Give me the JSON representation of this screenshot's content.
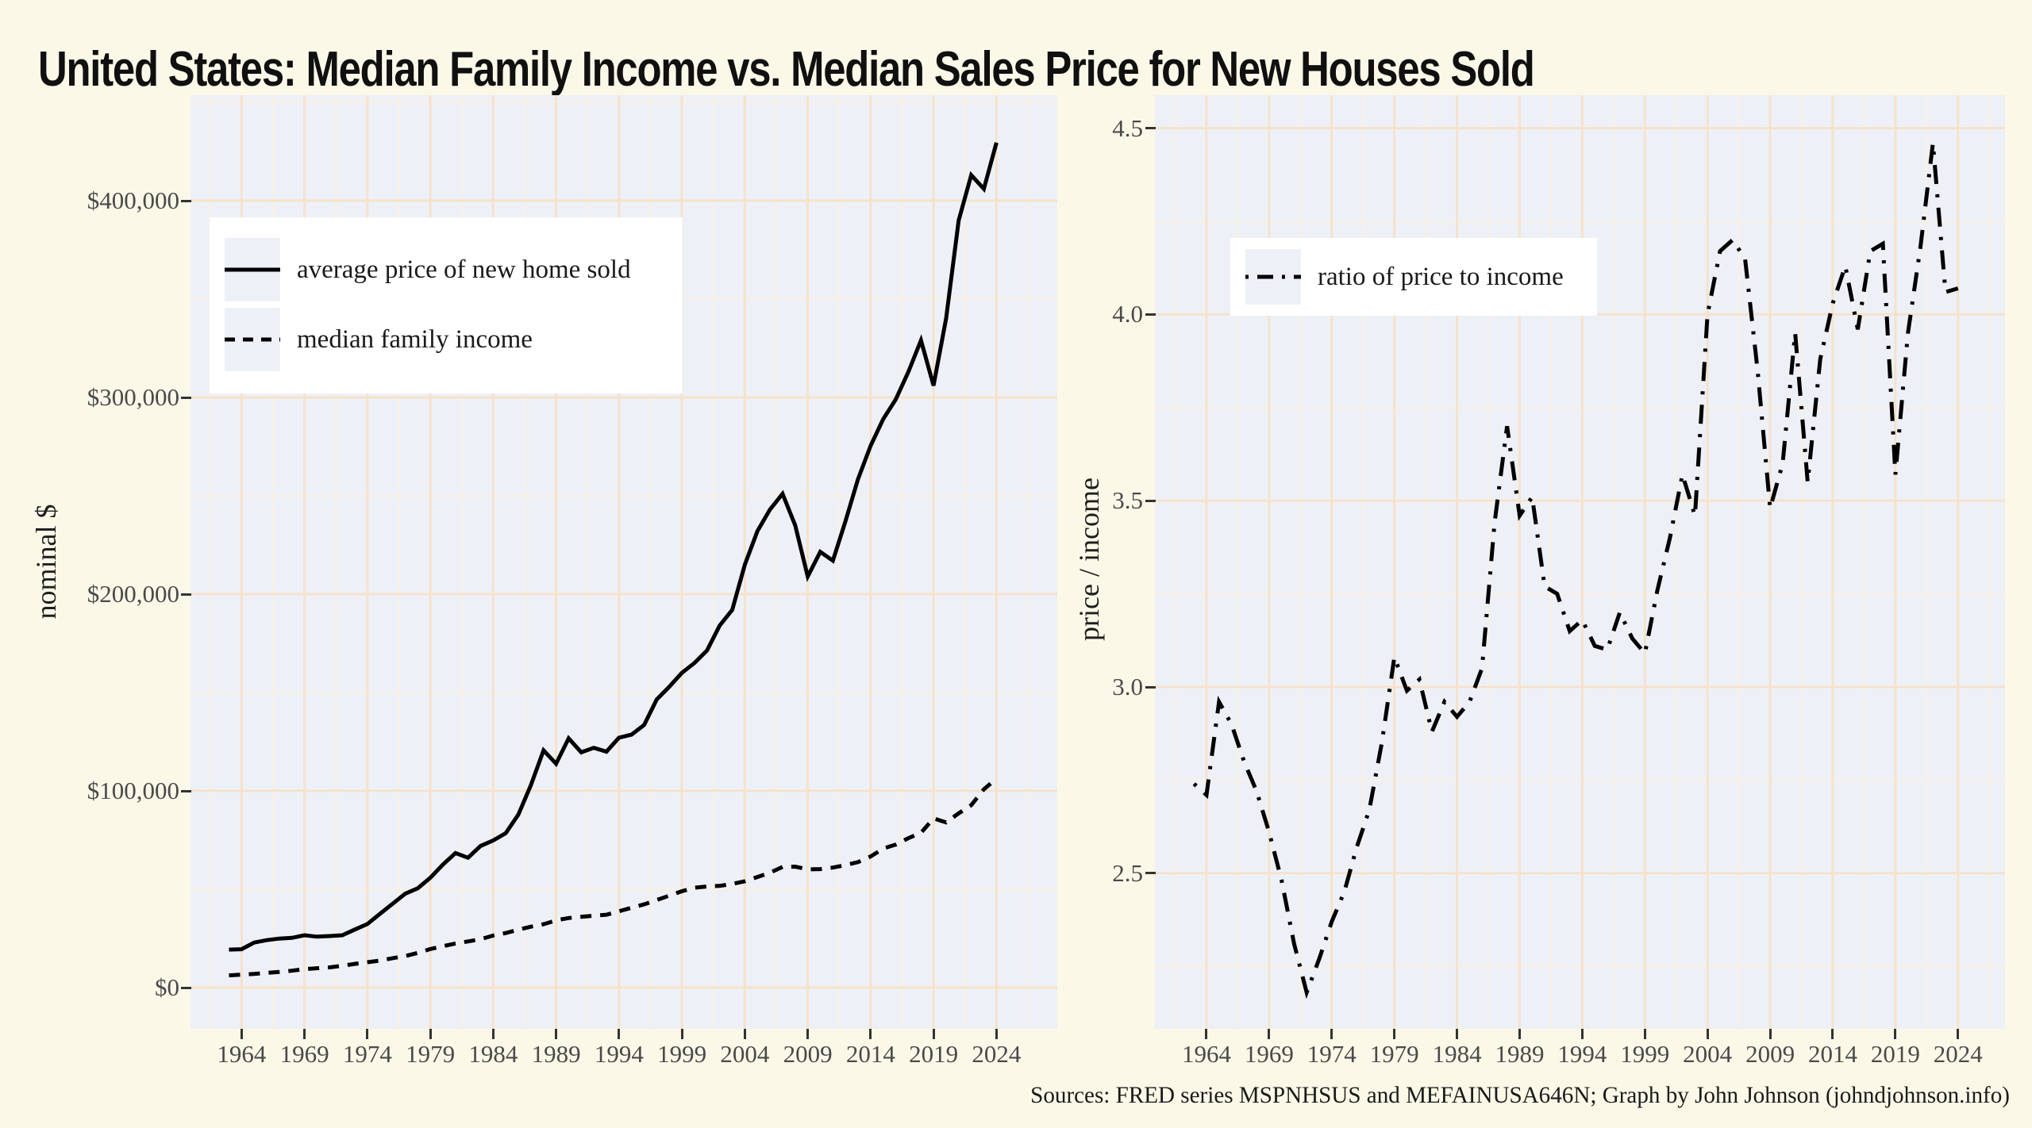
{
  "title": "United States: Median Family Income vs. Median Sales Price for New Houses Sold",
  "caption": "Sources: FRED series MSPNHSUS and MEFAINUSA646N; Graph by John Johnson (johndjohnson.info)",
  "colors": {
    "page_bg": "#FBF8E8",
    "panel_bg": "#EDF1F7",
    "grid_major": "#F6E2CB",
    "grid_minor": "#FAF0E1",
    "data_line": "#000000",
    "tick": "#333333",
    "tick_label": "#4a4a4a",
    "legend_bg": "#FFFFFF"
  },
  "chart_data": [
    {
      "id": "nominal",
      "type": "line",
      "title": "",
      "xlabel": "",
      "ylabel": "nominal $",
      "grid": true,
      "legend_position": "inset top-left",
      "x_tick_labels": [
        "1964",
        "1969",
        "1974",
        "1979",
        "1984",
        "1989",
        "1994",
        "1999",
        "2004",
        "2009",
        "2014",
        "2019",
        "2024"
      ],
      "x_tick_years": [
        1964,
        1969,
        1974,
        1979,
        1984,
        1989,
        1994,
        1999,
        2004,
        2009,
        2014,
        2019,
        2024
      ],
      "y_tick_labels": [
        "$0",
        "$100,000",
        "$200,000",
        "$300,000",
        "$400,000"
      ],
      "y_tick_values": [
        0,
        100000,
        200000,
        300000,
        400000
      ],
      "y_minor_values": [
        50000,
        150000,
        250000,
        350000,
        450000
      ],
      "x_minor_years": [
        1961.5,
        1966.5,
        1971.5,
        1976.5,
        1981.5,
        1986.5,
        1991.5,
        1996.5,
        2001.5,
        2006.5,
        2011.5,
        2016.5,
        2021.5,
        2026.5
      ],
      "ylim_usd": [
        -20000,
        455000
      ],
      "xlim": [
        1959.9,
        2027.9
      ],
      "years": [
        1963,
        1964,
        1965,
        1966,
        1967,
        1968,
        1969,
        1970,
        1971,
        1972,
        1973,
        1974,
        1975,
        1976,
        1977,
        1978,
        1979,
        1980,
        1981,
        1982,
        1983,
        1984,
        1985,
        1986,
        1987,
        1988,
        1989,
        1990,
        1991,
        1992,
        1993,
        1994,
        1995,
        1996,
        1997,
        1998,
        1999,
        2000,
        2001,
        2002,
        2003,
        2004,
        2005,
        2006,
        2007,
        2008,
        2009,
        2010,
        2011,
        2012,
        2013,
        2014,
        2015,
        2016,
        2017,
        2018,
        2019,
        2020,
        2021,
        2022,
        2023,
        2024
      ],
      "series": [
        {
          "name": "average price of new home sold",
          "style": "solid",
          "values_usd": [
            19300,
            19500,
            22900,
            24100,
            24900,
            25300,
            26600,
            25900,
            26200,
            26600,
            29500,
            32300,
            37500,
            42600,
            47700,
            50500,
            55800,
            62500,
            68400,
            66000,
            72000,
            74800,
            78500,
            88000,
            103000,
            120600,
            113800,
            126700,
            119600,
            121900,
            119900,
            127000,
            128600,
            133500,
            146500,
            153000,
            160000,
            165000,
            171400,
            184000,
            192000,
            215000,
            232000,
            243000,
            251000,
            235000,
            209000,
            221500,
            217000,
            237000,
            258500,
            275500,
            289000,
            299000,
            313000,
            329000,
            306000,
            340000,
            390000,
            413000,
            406000,
            429500
          ]
        },
        {
          "name": "median family income",
          "style": "dashed",
          "values_usd": [
            6200,
            6600,
            6950,
            7500,
            7950,
            8600,
            9400,
            9850,
            10300,
            11100,
            12050,
            12900,
            13700,
            14950,
            16000,
            17650,
            19600,
            21050,
            22400,
            23450,
            24600,
            26450,
            27750,
            29450,
            30950,
            32200,
            34200,
            35350,
            35950,
            36550,
            37000,
            38800,
            40600,
            42300,
            44550,
            46750,
            49000,
            50750,
            51400,
            51700,
            52700,
            54050,
            56200,
            58400,
            61350,
            61500,
            60100,
            60250,
            61000,
            62250,
            63800,
            66650,
            70700,
            72700,
            75950,
            78650,
            86000,
            84000,
            88600,
            92750,
            100800,
            106200
          ]
        }
      ]
    },
    {
      "id": "ratio",
      "type": "line",
      "title": "",
      "xlabel": "",
      "ylabel": "price / income",
      "grid": true,
      "legend_position": "inset top-left",
      "x_tick_labels": [
        "1964",
        "1969",
        "1974",
        "1979",
        "1984",
        "1989",
        "1994",
        "1999",
        "2004",
        "2009",
        "2014",
        "2019",
        "2024"
      ],
      "x_tick_years": [
        1964,
        1969,
        1974,
        1979,
        1984,
        1989,
        1994,
        1999,
        2004,
        2009,
        2014,
        2019,
        2024
      ],
      "y_tick_labels": [
        "2.5",
        "3.0",
        "3.5",
        "4.0",
        "4.5"
      ],
      "y_tick_values": [
        2.5,
        3.0,
        3.5,
        4.0,
        4.5
      ],
      "y_minor_values": [
        2.25,
        2.75,
        3.25,
        3.75,
        4.25
      ],
      "x_minor_years": [
        1961.5,
        1966.5,
        1971.5,
        1976.5,
        1981.5,
        1986.5,
        1991.5,
        1996.5,
        2001.5,
        2006.5,
        2011.5,
        2016.5,
        2021.5,
        2026.5
      ],
      "ylim": [
        2.08,
        4.59
      ],
      "xlim": [
        1959.9,
        2027.9
      ],
      "years": [
        1963,
        1964,
        1965,
        1966,
        1967,
        1968,
        1969,
        1970,
        1971,
        1972,
        1973,
        1974,
        1975,
        1976,
        1977,
        1978,
        1979,
        1980,
        1981,
        1982,
        1983,
        1984,
        1985,
        1986,
        1987,
        1988,
        1989,
        1990,
        1991,
        1992,
        1993,
        1994,
        1995,
        1996,
        1997,
        1998,
        1999,
        2000,
        2001,
        2002,
        2003,
        2004,
        2005,
        2006,
        2007,
        2008,
        2009,
        2010,
        2011,
        2012,
        2013,
        2014,
        2015,
        2016,
        2017,
        2018,
        2019,
        2020,
        2021,
        2022,
        2023,
        2024
      ],
      "series": [
        {
          "name": "ratio of price to income",
          "style": "dashdot",
          "values": [
            2.74,
            2.71,
            2.96,
            2.9,
            2.8,
            2.72,
            2.61,
            2.48,
            2.31,
            2.18,
            2.27,
            2.37,
            2.45,
            2.57,
            2.67,
            2.85,
            3.08,
            2.99,
            3.02,
            2.88,
            2.96,
            2.92,
            2.96,
            3.05,
            3.44,
            3.7,
            3.46,
            3.51,
            3.27,
            3.25,
            3.15,
            3.18,
            3.11,
            3.1,
            3.2,
            3.13,
            3.09,
            3.26,
            3.4,
            3.57,
            3.46,
            4.0,
            4.17,
            4.2,
            4.15,
            3.85,
            3.48,
            3.6,
            3.95,
            3.55,
            3.88,
            4.03,
            4.13,
            3.96,
            4.17,
            4.19,
            3.57,
            3.95,
            4.18,
            4.46,
            4.06,
            4.07
          ]
        }
      ]
    }
  ]
}
